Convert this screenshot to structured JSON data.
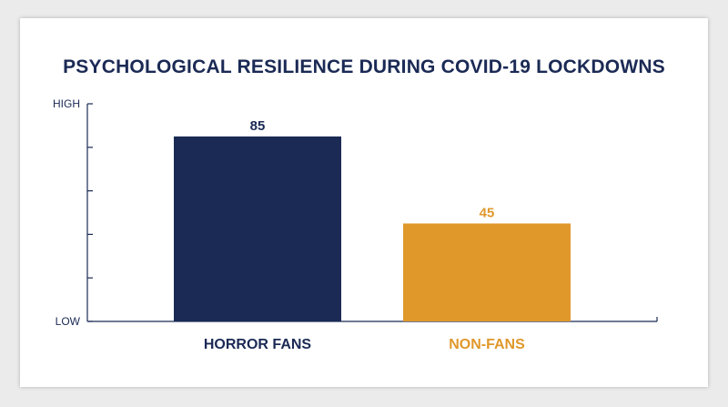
{
  "chart_data": {
    "type": "bar",
    "title": "PSYCHOLOGICAL RESILIENCE DURING COVID-19 LOCKDOWNS",
    "categories": [
      "HORROR FANS",
      "NON-FANS"
    ],
    "values": [
      85,
      45
    ],
    "colors": [
      "#1b2a55",
      "#e0982b"
    ],
    "ylim": [
      0,
      100
    ],
    "y_top_label": "HIGH",
    "y_bottom_label": "LOW",
    "y_tick_count": 5,
    "grid": false,
    "legend": "none"
  }
}
